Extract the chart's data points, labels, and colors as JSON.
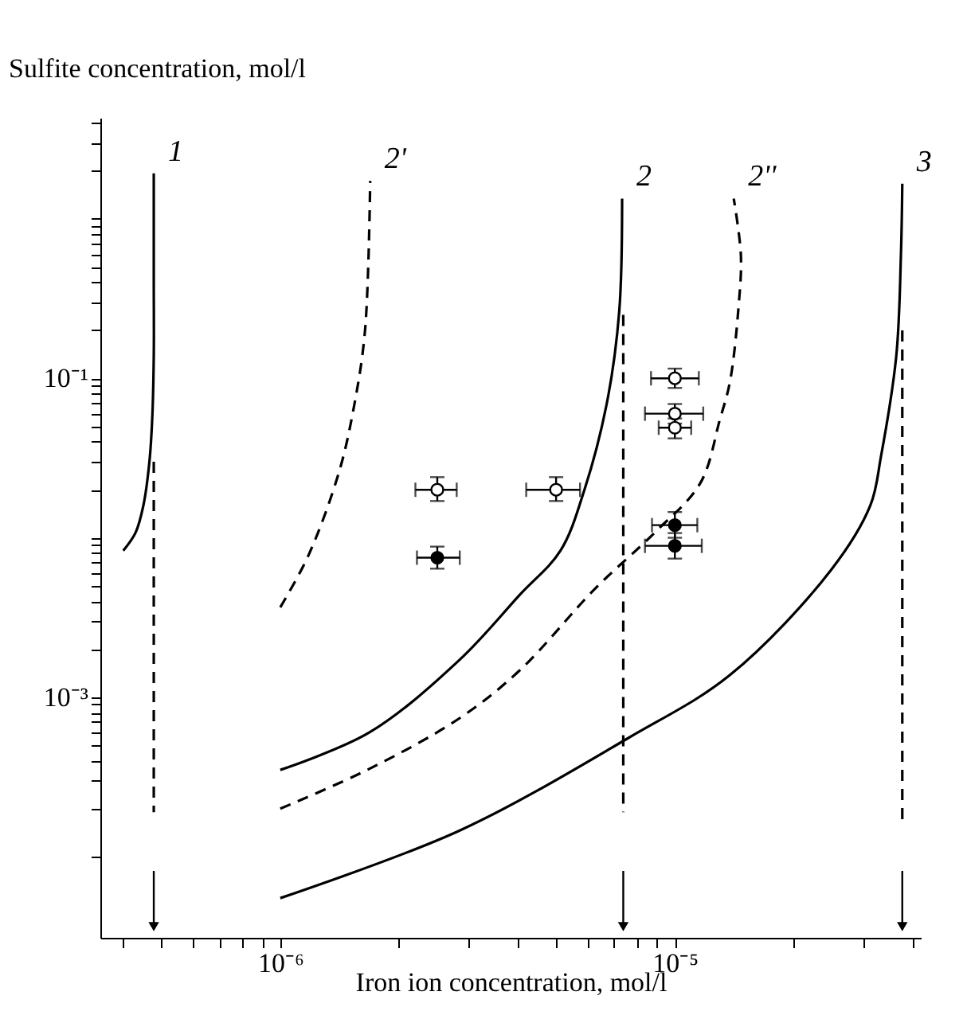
{
  "chart_data": {
    "type": "line",
    "xlabel": "Iron ion concentration, mol/l",
    "ylabel": "Sulfite concentration, mol/l",
    "log": "xy",
    "grid": false,
    "xlim": [
      3.5e-07,
      4.2e-05
    ],
    "ylim": [
      3.1e-05,
      4.3
    ],
    "xticks": [
      {
        "value": 4e-07,
        "label": null
      },
      {
        "value": 5e-07,
        "label": null
      },
      {
        "value": 6e-07,
        "label": null
      },
      {
        "value": 7e-07,
        "label": null
      },
      {
        "value": 8e-07,
        "label": null
      },
      {
        "value": 9e-07,
        "label": null
      },
      {
        "value": 1e-06,
        "label": "10⁻⁶"
      },
      {
        "value": 2e-06,
        "label": null
      },
      {
        "value": 3e-06,
        "label": null
      },
      {
        "value": 4e-06,
        "label": null
      },
      {
        "value": 5e-06,
        "label": null
      },
      {
        "value": 6e-06,
        "label": null
      },
      {
        "value": 7e-06,
        "label": null
      },
      {
        "value": 8e-06,
        "label": null
      },
      {
        "value": 9e-06,
        "label": null
      },
      {
        "value": 1e-05,
        "label": "10⁻⁵"
      },
      {
        "value": 2e-05,
        "label": null
      },
      {
        "value": 3e-05,
        "label": null
      },
      {
        "value": 4e-05,
        "label": null
      }
    ],
    "yticks": [
      {
        "value": 0.0001,
        "label": null
      },
      {
        "value": 0.0002,
        "label": null
      },
      {
        "value": 0.0003,
        "label": null
      },
      {
        "value": 0.0004,
        "label": null
      },
      {
        "value": 0.0005,
        "label": null
      },
      {
        "value": 0.0006,
        "label": null
      },
      {
        "value": 0.0007,
        "label": null
      },
      {
        "value": 0.0008,
        "label": null
      },
      {
        "value": 0.0009,
        "label": null
      },
      {
        "value": 0.001,
        "label": "10⁻³"
      },
      {
        "value": 0.002,
        "label": null
      },
      {
        "value": 0.003,
        "label": null
      },
      {
        "value": 0.004,
        "label": null
      },
      {
        "value": 0.005,
        "label": null
      },
      {
        "value": 0.006,
        "label": null
      },
      {
        "value": 0.007,
        "label": null
      },
      {
        "value": 0.008,
        "label": null
      },
      {
        "value": 0.009,
        "label": null
      },
      {
        "value": 0.01,
        "label": null
      },
      {
        "value": 0.02,
        "label": null
      },
      {
        "value": 0.03,
        "label": null
      },
      {
        "value": 0.04,
        "label": null
      },
      {
        "value": 0.05,
        "label": null
      },
      {
        "value": 0.06,
        "label": null
      },
      {
        "value": 0.07,
        "label": null
      },
      {
        "value": 0.08,
        "label": null
      },
      {
        "value": 0.09,
        "label": null
      },
      {
        "value": 0.1,
        "label": "10⁻¹"
      },
      {
        "value": 0.2,
        "label": null
      },
      {
        "value": 0.3,
        "label": null
      },
      {
        "value": 0.4,
        "label": null
      },
      {
        "value": 0.5,
        "label": null
      },
      {
        "value": 0.6,
        "label": null
      },
      {
        "value": 0.7,
        "label": null
      },
      {
        "value": 0.8,
        "label": null
      },
      {
        "value": 0.9,
        "label": null
      },
      {
        "value": 1,
        "label": null
      },
      {
        "value": 2,
        "label": null
      },
      {
        "value": 3,
        "label": null
      },
      {
        "value": 4,
        "label": null
      }
    ],
    "series": [
      {
        "name": "1",
        "line_style": "solid",
        "color": "#000000",
        "x": [
          4e-07,
          4.3e-07,
          4.5e-07,
          4.66e-07,
          4.74e-07,
          4.78e-07,
          4.78e-07,
          4.78e-07
        ],
        "values": [
          0.0083,
          0.0108,
          0.016,
          0.03,
          0.058,
          0.14,
          0.41,
          1.93
        ]
      },
      {
        "name": "2'",
        "line_style": "dashed",
        "color": "#000000",
        "x": [
          1e-06,
          1.18e-06,
          1.41e-06,
          1.54e-06,
          1.64e-06,
          1.69e-06
        ],
        "values": [
          0.00366,
          0.0078,
          0.026,
          0.068,
          0.2,
          1.73
        ]
      },
      {
        "name": "2",
        "line_style": "solid",
        "color": "#000000",
        "x": [
          1e-06,
          1.68e-06,
          2.85e-06,
          4.05e-06,
          5.13e-06,
          5.9e-06,
          6.74e-06,
          7.23e-06,
          7.35e-06
        ],
        "values": [
          0.00035,
          0.0006,
          0.00172,
          0.0044,
          0.0083,
          0.02,
          0.072,
          0.265,
          1.34
        ]
      },
      {
        "name": "2''",
        "line_style": "dashed",
        "color": "#000000",
        "x": [
          1e-06,
          1.68e-06,
          2.85e-06,
          4.05e-06,
          6.28e-06,
          8.9e-06,
          1.16e-05,
          1.3e-05,
          1.38e-05,
          1.45e-05,
          1.47e-05,
          1.41e-05
        ],
        "values": [
          0.0002,
          0.000355,
          0.00074,
          0.00148,
          0.0048,
          0.0108,
          0.022,
          0.055,
          0.096,
          0.28,
          0.59,
          1.34
        ]
      },
      {
        "name": "3",
        "line_style": "solid",
        "color": "#000000",
        "x": [
          1e-06,
          2.85e-06,
          7.67e-06,
          1.38e-05,
          2.49e-05,
          3.13e-05,
          3.33e-05,
          3.64e-05,
          3.74e-05,
          3.77e-05
        ],
        "values": [
          5.5e-05,
          0.000146,
          0.00056,
          0.00138,
          0.0063,
          0.016,
          0.0325,
          0.138,
          0.59,
          1.66
        ]
      },
      {
        "line_style": "dashed",
        "color": "#000000",
        "x": [
          4.78e-07,
          4.78e-07
        ],
        "values": [
          0.03,
          0.00019
        ]
      },
      {
        "line_style": "dashed",
        "color": "#000000",
        "x": [
          7.4e-06,
          7.4e-06
        ],
        "values": [
          0.25,
          0.00019
        ]
      },
      {
        "line_style": "dashed",
        "color": "#000000",
        "x": [
          3.77e-05,
          3.77e-05
        ],
        "values": [
          0.2,
          0.00017
        ]
      },
      {
        "type": "scatter",
        "marker": "circle",
        "color": "#ffffff",
        "x": [
          2.5e-06,
          5e-06,
          1e-05,
          1e-05,
          1e-05
        ],
        "values": [
          0.02,
          0.02,
          0.1,
          0.06,
          0.049
        ],
        "errors": [
          [
            0.017,
            0.024
          ],
          [
            0.017,
            0.024
          ],
          [
            0.087,
            0.115
          ],
          [
            0.052,
            0.069
          ],
          [
            0.042,
            0.056
          ]
        ],
        "xerrors": [
          [
            2.2e-06,
            2.8e-06
          ],
          [
            4.2e-06,
            5.75e-06
          ],
          [
            8.7e-06,
            1.15e-05
          ],
          [
            8.4e-06,
            1.18e-05
          ],
          [
            9.1e-06,
            1.1e-05
          ]
        ]
      },
      {
        "type": "scatter",
        "marker": "circle",
        "color": "#000000",
        "x": [
          2.5e-06,
          1e-05,
          1e-05
        ],
        "values": [
          0.0075,
          0.012,
          0.0089
        ],
        "errors": [
          [
            0.0064,
            0.0088
          ],
          [
            0.01,
            0.0145
          ],
          [
            0.0074,
            0.0107
          ]
        ],
        "xerrors": [
          [
            2.22e-06,
            2.85e-06
          ],
          [
            8.75e-06,
            1.14e-05
          ],
          [
            8.4e-06,
            1.17e-05
          ]
        ]
      }
    ]
  }
}
